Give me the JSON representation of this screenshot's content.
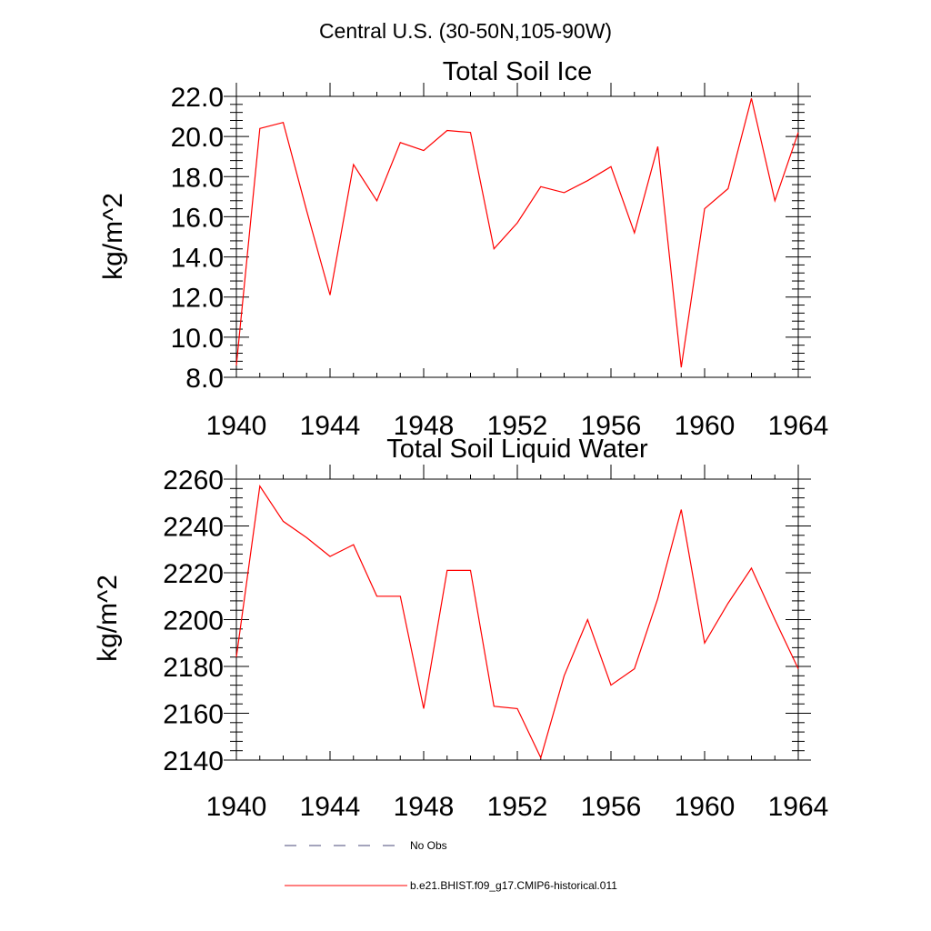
{
  "figure_title": "Central U.S. (30-50N,105-90W)",
  "colors": {
    "series": "#ff0000",
    "no_obs": "#4a4a7a",
    "axis": "#000000"
  },
  "legend": {
    "items": [
      {
        "label": "No Obs",
        "style": "dashed",
        "color": "#4a4a7a"
      },
      {
        "label": "b.e21.BHIST.f09_g17.CMIP6-historical.011",
        "style": "solid",
        "color": "#ff0000"
      }
    ]
  },
  "chart_data": [
    {
      "type": "line",
      "title": "Total Soil Ice",
      "xlabel": "",
      "ylabel": "kg/m^2",
      "xlim": [
        1940,
        1964
      ],
      "ylim": [
        8.0,
        22.0
      ],
      "xticks": [
        1940,
        1944,
        1948,
        1952,
        1956,
        1960,
        1964
      ],
      "yticks": [
        "8.0",
        "10.0",
        "12.0",
        "14.0",
        "16.0",
        "18.0",
        "20.0",
        "22.0"
      ],
      "x": [
        1940,
        1941,
        1942,
        1943,
        1944,
        1945,
        1946,
        1947,
        1948,
        1949,
        1950,
        1951,
        1952,
        1953,
        1954,
        1955,
        1956,
        1957,
        1958,
        1959,
        1960,
        1961,
        1962,
        1963,
        1964
      ],
      "series": [
        {
          "values": [
            8.6,
            20.4,
            20.7,
            16.3,
            12.1,
            18.6,
            16.8,
            19.7,
            19.3,
            20.3,
            20.2,
            14.4,
            15.7,
            17.5,
            17.2,
            17.8,
            18.5,
            15.2,
            19.5,
            8.5,
            16.4,
            17.4,
            21.9,
            16.8,
            20.2
          ]
        }
      ]
    },
    {
      "type": "line",
      "title": "Total Soil Liquid Water",
      "xlabel": "",
      "ylabel": "kg/m^2",
      "xlim": [
        1940,
        1964
      ],
      "ylim": [
        2140,
        2260
      ],
      "xticks": [
        1940,
        1944,
        1948,
        1952,
        1956,
        1960,
        1964
      ],
      "yticks": [
        "2140",
        "2160",
        "2180",
        "2200",
        "2220",
        "2240",
        "2260"
      ],
      "x": [
        1940,
        1941,
        1942,
        1943,
        1944,
        1945,
        1946,
        1947,
        1948,
        1949,
        1950,
        1951,
        1952,
        1953,
        1954,
        1955,
        1956,
        1957,
        1958,
        1959,
        1960,
        1961,
        1962,
        1963,
        1964
      ],
      "series": [
        {
          "values": [
            2184,
            2257,
            2242,
            2235,
            2227,
            2232,
            2210,
            2210,
            2162,
            2221,
            2221,
            2163,
            2162,
            2141,
            2176,
            2200,
            2172,
            2179,
            2209,
            2247,
            2190,
            2207,
            2222,
            2200,
            2179
          ]
        }
      ]
    }
  ]
}
